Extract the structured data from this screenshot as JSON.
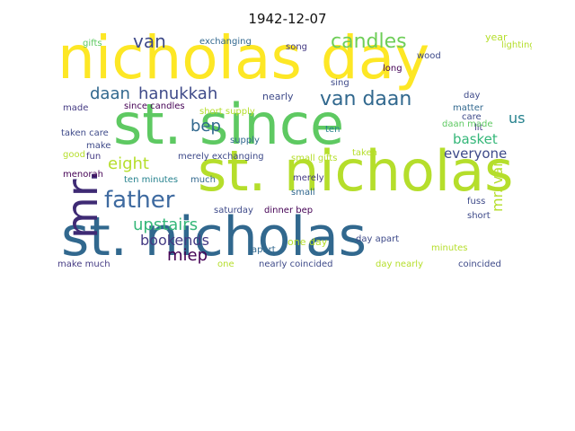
{
  "title": "1942-12-07",
  "palette": [
    "#440154",
    "#482878",
    "#3e4a89",
    "#31688e",
    "#26828e",
    "#1f9e89",
    "#35b779",
    "#6ece58",
    "#b5de2b",
    "#fde725"
  ],
  "words": {
    "nicholas_day": "nicholas day",
    "st_since": "st. since",
    "st_nicholas_1": "st. nicholas",
    "st_nicholas_2": "st. nicholas",
    "mr": "mr.",
    "father": "father",
    "candles": "candles",
    "van": "van",
    "daan": "daan",
    "hanukkah": "hanukkah",
    "van_daan": "van daan",
    "bep": "bep",
    "eight": "eight",
    "upstairs": "upstairs",
    "bookends": "bookends",
    "miep": "miep",
    "basket": "basket",
    "everyone": "everyone",
    "mr_van": "mr. van",
    "us": "us",
    "make_much": "make much",
    "nearly_coincided": "nearly coincided",
    "day_nearly": "day nearly",
    "coincided": "coincided",
    "one": "one",
    "apart": "apart",
    "one_day": "one day",
    "day_apart": "day apart",
    "exchanging": "exchanging",
    "merely_exchanging": "merely exchanging",
    "small_gifts": "small gifts",
    "short_supply": "short supply",
    "since_candles": "since candles",
    "nearly": "nearly",
    "ten_minutes": "ten minutes",
    "saturday": "saturday",
    "supply": "supply",
    "gifts": "gifts",
    "song": "song",
    "year": "year",
    "lighting": "lighting",
    "long": "long",
    "sing": "sing",
    "taken_care": "taken care",
    "made": "made",
    "make": "make",
    "fun": "fun",
    "good": "good",
    "much": "much",
    "merely": "merely",
    "small": "small",
    "ten": "ten",
    "day": "day",
    "matter": "matter",
    "care": "care",
    "lit": "lit",
    "daan_made": "daan made",
    "wood": "wood",
    "fuss": "fuss",
    "short": "short",
    "minutes": "minutes",
    "dinner_bep": "dinner bep",
    "taken": "taken",
    "menorah": "menorah"
  }
}
